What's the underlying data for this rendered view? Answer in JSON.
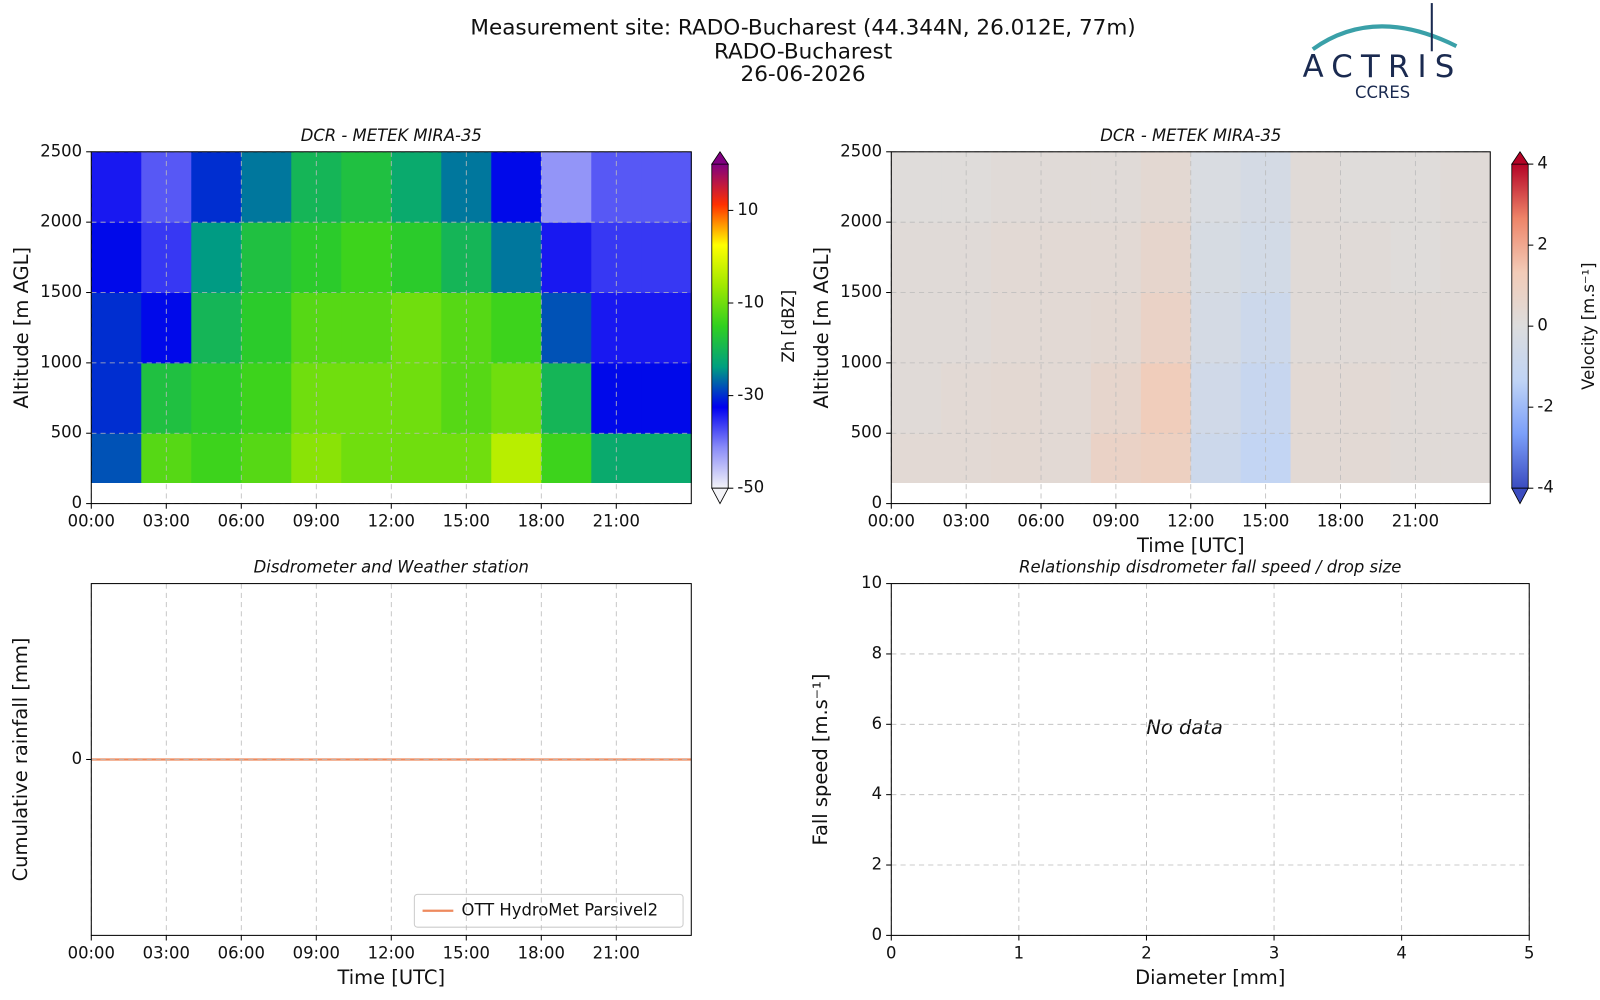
{
  "header": {
    "title_lines": [
      "Measurement site: RADO-Bucharest (44.344N, 26.012E, 77m)",
      "RADO-Bucharest",
      "26-06-2026"
    ],
    "logo": {
      "name": "ACTRIS",
      "subtitle": "CCRES"
    }
  },
  "chart_data": [
    {
      "type": "heatmap",
      "title": "DCR - METEK MIRA-35",
      "ylabel": "Altitude [m AGL]",
      "xlim": [
        0,
        24
      ],
      "xticks": [
        {
          "value": 0,
          "label": "00:00"
        },
        {
          "value": 3,
          "label": "03:00"
        },
        {
          "value": 6,
          "label": "06:00"
        },
        {
          "value": 9,
          "label": "09:00"
        },
        {
          "value": 12,
          "label": "12:00"
        },
        {
          "value": 15,
          "label": "15:00"
        },
        {
          "value": 18,
          "label": "18:00"
        },
        {
          "value": 21,
          "label": "21:00"
        }
      ],
      "ylim": [
        0,
        2500
      ],
      "yticks": [
        0,
        500,
        1000,
        1500,
        2000,
        2500
      ],
      "grid": true,
      "xbins": [
        0,
        2,
        4,
        6,
        8,
        10,
        12,
        14,
        16,
        18,
        20,
        22,
        24
      ],
      "ybins": [
        150,
        500,
        1000,
        1500,
        2000,
        2500
      ],
      "z": [
        [
          -28,
          -12,
          -14,
          -12,
          -8,
          -10,
          -10,
          -10,
          -4,
          -14,
          -22,
          -22
        ],
        [
          -30,
          -18,
          -16,
          -14,
          -10,
          -10,
          -10,
          -12,
          -10,
          -20,
          -32,
          -32
        ],
        [
          -30,
          -32,
          -20,
          -16,
          -12,
          -12,
          -10,
          -12,
          -14,
          -28,
          -34,
          -34
        ],
        [
          -32,
          -36,
          -24,
          -18,
          -16,
          -14,
          -16,
          -20,
          -26,
          -34,
          -36,
          -36
        ],
        [
          -34,
          -38,
          -30,
          -26,
          -20,
          -18,
          -22,
          -26,
          -32,
          -42,
          -38,
          -38
        ]
      ],
      "clim": [
        -50,
        20
      ],
      "cticks": [
        10,
        -10,
        -30,
        -50
      ],
      "clabel": "Zh [dBZ]",
      "colorscale": [
        "#f4f4f8",
        "#8a8cf8",
        "#0000f0",
        "#00a080",
        "#30d020",
        "#a0e800",
        "#ffff00",
        "#ff3000",
        "#800080"
      ]
    },
    {
      "type": "heatmap",
      "title": "DCR - METEK MIRA-35",
      "ylabel": "Altitude [m AGL]",
      "xlabel": "Time [UTC]",
      "xlim": [
        0,
        24
      ],
      "xticks": [
        {
          "value": 0,
          "label": "00:00"
        },
        {
          "value": 3,
          "label": "03:00"
        },
        {
          "value": 6,
          "label": "06:00"
        },
        {
          "value": 9,
          "label": "09:00"
        },
        {
          "value": 12,
          "label": "12:00"
        },
        {
          "value": 15,
          "label": "15:00"
        },
        {
          "value": 18,
          "label": "18:00"
        },
        {
          "value": 21,
          "label": "21:00"
        }
      ],
      "ylim": [
        0,
        2500
      ],
      "yticks": [
        0,
        500,
        1000,
        1500,
        2000,
        2500
      ],
      "grid": true,
      "xbins": [
        0,
        2,
        4,
        6,
        8,
        10,
        12,
        14,
        16,
        18,
        20,
        22,
        24
      ],
      "ybins": [
        150,
        500,
        1000,
        1500,
        2000,
        2500
      ],
      "z": [
        [
          0.3,
          0.3,
          0.4,
          0.3,
          0.8,
          1.0,
          -0.8,
          -1.2,
          0.3,
          0.3,
          0.2,
          0.2
        ],
        [
          0.2,
          0.3,
          0.4,
          0.3,
          0.6,
          1.2,
          -0.6,
          -1.0,
          0.3,
          0.3,
          0.2,
          0.2
        ],
        [
          0.2,
          0.2,
          0.3,
          0.3,
          0.4,
          0.8,
          -0.4,
          -0.8,
          0.2,
          0.2,
          0.2,
          0.2
        ],
        [
          0.2,
          0.2,
          0.3,
          0.3,
          0.3,
          0.6,
          -0.3,
          -0.5,
          0.2,
          0.2,
          0.1,
          0.2
        ],
        [
          0.1,
          0.1,
          0.2,
          0.2,
          0.2,
          0.4,
          -0.2,
          -0.4,
          0.2,
          0.1,
          0.1,
          0.2
        ]
      ],
      "clim": [
        -4,
        4
      ],
      "cticks": [
        4,
        2,
        0,
        -2,
        -4
      ],
      "clabel": "Velocity [m.s⁻¹]",
      "colorscale": [
        "#3b4cc0",
        "#7b9ff9",
        "#c0d4f5",
        "#dddddd",
        "#f2cbb7",
        "#ee8468",
        "#b40426"
      ]
    },
    {
      "type": "line",
      "title": "Disdrometer and Weather station",
      "ylabel": "Cumulative rainfall [mm]",
      "xlabel": "Time [UTC]",
      "xlim": [
        0,
        24
      ],
      "xticks": [
        {
          "value": 0,
          "label": "00:00"
        },
        {
          "value": 3,
          "label": "03:00"
        },
        {
          "value": 6,
          "label": "06:00"
        },
        {
          "value": 9,
          "label": "09:00"
        },
        {
          "value": 12,
          "label": "12:00"
        },
        {
          "value": 15,
          "label": "15:00"
        },
        {
          "value": 18,
          "label": "18:00"
        },
        {
          "value": 21,
          "label": "21:00"
        }
      ],
      "ylim": [
        -0.055,
        0.055
      ],
      "yticks": [
        0
      ],
      "grid": true,
      "legend": "lower-right",
      "series": [
        {
          "name": "OTT HydroMet Parsivel2",
          "color": "#ee8a5e",
          "x": [
            0,
            24
          ],
          "values": [
            0,
            0
          ]
        }
      ]
    },
    {
      "type": "scatter",
      "title": "Relationship disdrometer fall speed / drop size",
      "ylabel": "Fall speed [m.s⁻¹]",
      "xlabel": "Diameter [mm]",
      "xlim": [
        0,
        5
      ],
      "xticks": [
        0,
        1,
        2,
        3,
        4,
        5
      ],
      "ylim": [
        0,
        10
      ],
      "yticks": [
        0,
        2,
        4,
        6,
        8,
        10
      ],
      "grid": true,
      "annotation": "No data",
      "series": [
        {
          "x": [],
          "values": []
        }
      ]
    }
  ]
}
